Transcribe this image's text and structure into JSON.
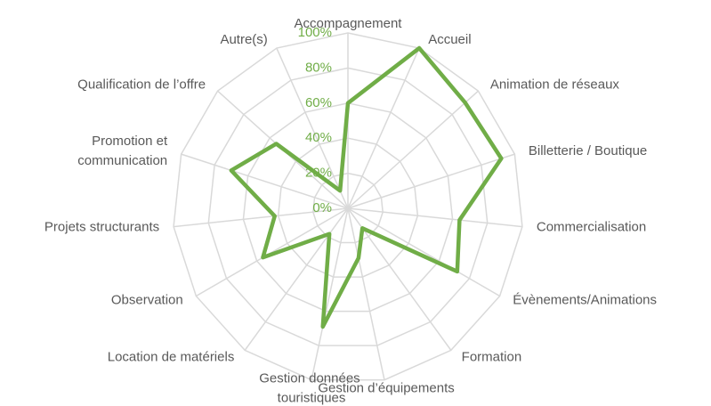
{
  "chart_data": {
    "type": "radar",
    "categories": [
      "Accompagnement",
      "Accueil",
      "Animation de réseaux",
      "Billetterie / Boutique",
      "Commercialisation",
      "Évènements/Animations",
      "Formation",
      "Gestion d’équipements",
      "Gestion données touristiques",
      "Location de matériels",
      "Observation",
      "Projets structurants",
      "Promotion et communication",
      "Qualification de l’offre",
      "Autre(s)"
    ],
    "series": [
      {
        "name": null,
        "color": "#70ad47",
        "values": [
          60,
          100,
          90,
          92,
          64,
          72,
          14,
          29,
          69,
          18,
          56,
          42,
          70,
          55,
          11
        ]
      }
    ],
    "ylim": [
      0,
      100
    ],
    "yticks": [
      {
        "value": 0,
        "label": "0%"
      },
      {
        "value": 20,
        "label": "20%"
      },
      {
        "value": 40,
        "label": "40%"
      },
      {
        "value": 60,
        "label": "60%"
      },
      {
        "value": 80,
        "label": "80%"
      },
      {
        "value": 100,
        "label": "100%"
      }
    ],
    "grid": true
  }
}
